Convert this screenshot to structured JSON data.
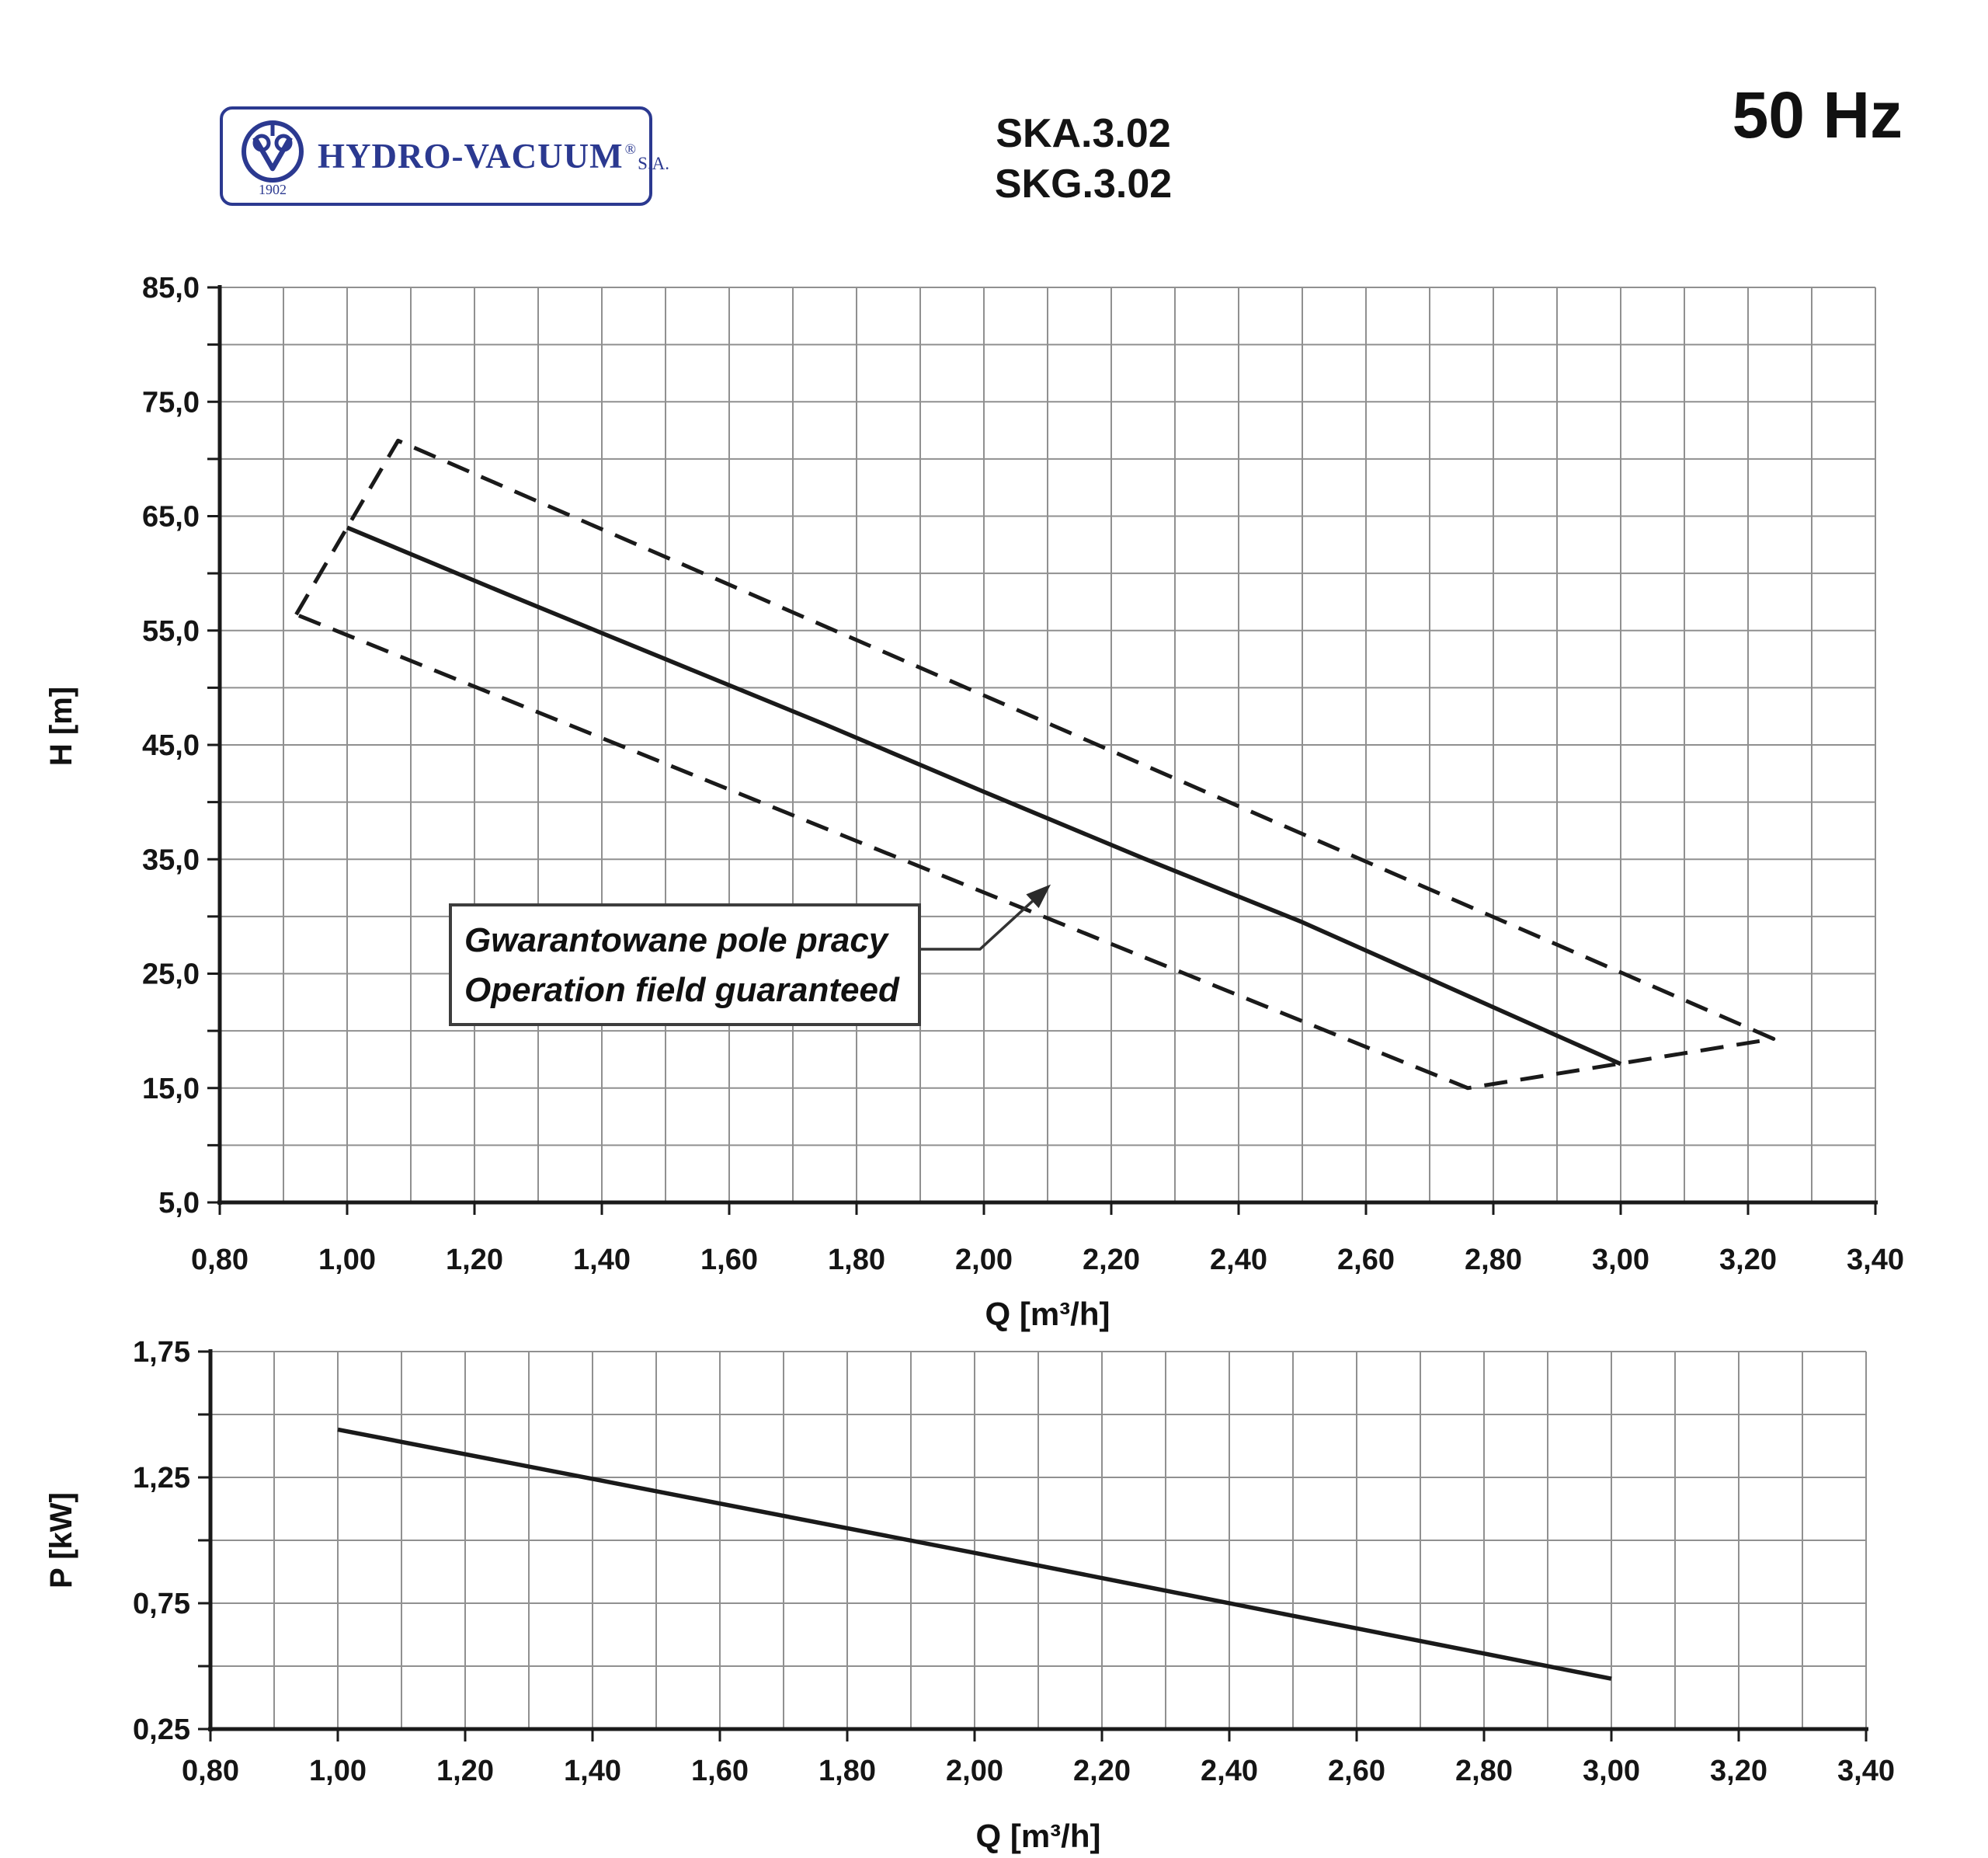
{
  "header": {
    "logo": {
      "brand": "HYDRO-VACUUM",
      "registered_mark": "®",
      "company_suffix": "S.A.",
      "established": "1902",
      "color": "#2b3990"
    },
    "model_line1": "SKA.3.02",
    "model_line2": "SKG.3.02",
    "frequency": "50 Hz"
  },
  "callout": {
    "line1": "Gwarantowane pole pracy",
    "line2": "Operation field guaranteed"
  },
  "colors": {
    "grid": "#909090",
    "axis": "#1a1a1a",
    "curve": "#1a1a1a",
    "text": "#151515",
    "logo_navy": "#2b3990"
  },
  "chart_data": [
    {
      "id": "h-q-chart",
      "type": "line",
      "title": "",
      "xlabel": "Q [m³/h]",
      "ylabel": "H [m]",
      "xlim": [
        0.8,
        3.4
      ],
      "ylim": [
        5,
        85
      ],
      "x_grid_step": 0.1,
      "y_grid_step": 5,
      "grid": true,
      "legend_position": "none",
      "x_ticks": [
        {
          "v": 0.8,
          "t": "0,80"
        },
        {
          "v": 1.0,
          "t": "1,00"
        },
        {
          "v": 1.2,
          "t": "1,20"
        },
        {
          "v": 1.4,
          "t": "1,40"
        },
        {
          "v": 1.6,
          "t": "1,60"
        },
        {
          "v": 1.8,
          "t": "1,80"
        },
        {
          "v": 2.0,
          "t": "2,00"
        },
        {
          "v": 2.2,
          "t": "2,20"
        },
        {
          "v": 2.4,
          "t": "2,40"
        },
        {
          "v": 2.6,
          "t": "2,60"
        },
        {
          "v": 2.8,
          "t": "2,80"
        },
        {
          "v": 3.0,
          "t": "3,00"
        },
        {
          "v": 3.2,
          "t": "3,20"
        },
        {
          "v": 3.4,
          "t": "3,40"
        }
      ],
      "y_ticks": [
        {
          "v": 85,
          "t": "85,0"
        },
        {
          "v": 75,
          "t": "75,0"
        },
        {
          "v": 65,
          "t": "65,0"
        },
        {
          "v": 55,
          "t": "55,0"
        },
        {
          "v": 45,
          "t": "45,0"
        },
        {
          "v": 35,
          "t": "35,0"
        },
        {
          "v": 25,
          "t": "25,0"
        },
        {
          "v": 15,
          "t": "15,0"
        },
        {
          "v": 5,
          "t": "5,0"
        }
      ],
      "series": [
        {
          "name": "head-curve",
          "style": "solid",
          "points": [
            [
              1.0,
              64.0
            ],
            [
              1.25,
              58.2
            ],
            [
              1.5,
              52.5
            ],
            [
              1.75,
              46.8
            ],
            [
              2.0,
              40.9
            ],
            [
              2.25,
              35.1
            ],
            [
              2.5,
              29.5
            ],
            [
              2.75,
              23.3
            ],
            [
              3.0,
              17.1
            ]
          ]
        },
        {
          "name": "operation-field-boundary",
          "style": "dashed",
          "closed": true,
          "points": [
            [
              0.92,
              56.4
            ],
            [
              1.08,
              71.6
            ],
            [
              3.24,
              19.3
            ],
            [
              2.76,
              15.0
            ]
          ]
        }
      ],
      "annotation": {
        "line1": "Gwarantowane pole pracy",
        "line2": "Operation field guaranteed",
        "arrow_tip": [
          2.105,
          32.8
        ]
      }
    },
    {
      "id": "p-q-chart",
      "type": "line",
      "title": "",
      "xlabel": "Q [m³/h]",
      "ylabel": "P [kW]",
      "xlim": [
        0.8,
        3.4
      ],
      "ylim": [
        0.25,
        1.75
      ],
      "x_grid_step": 0.1,
      "y_grid_step": 0.25,
      "grid": true,
      "legend_position": "none",
      "x_ticks": [
        {
          "v": 0.8,
          "t": "0,80"
        },
        {
          "v": 1.0,
          "t": "1,00"
        },
        {
          "v": 1.2,
          "t": "1,20"
        },
        {
          "v": 1.4,
          "t": "1,40"
        },
        {
          "v": 1.6,
          "t": "1,60"
        },
        {
          "v": 1.8,
          "t": "1,80"
        },
        {
          "v": 2.0,
          "t": "2,00"
        },
        {
          "v": 2.2,
          "t": "2,20"
        },
        {
          "v": 2.4,
          "t": "2,40"
        },
        {
          "v": 2.6,
          "t": "2,60"
        },
        {
          "v": 2.8,
          "t": "2,80"
        },
        {
          "v": 3.0,
          "t": "3,00"
        },
        {
          "v": 3.2,
          "t": "3,20"
        },
        {
          "v": 3.4,
          "t": "3,40"
        }
      ],
      "y_ticks": [
        {
          "v": 1.75,
          "t": "1,75"
        },
        {
          "v": 1.25,
          "t": "1,25"
        },
        {
          "v": 0.75,
          "t": "0,75"
        },
        {
          "v": 0.25,
          "t": "0,25"
        }
      ],
      "series": [
        {
          "name": "power-curve",
          "style": "solid",
          "points": [
            [
              1.0,
              1.44
            ],
            [
              1.5,
              1.195
            ],
            [
              2.0,
              0.95
            ],
            [
              2.5,
              0.7
            ],
            [
              3.0,
              0.45
            ]
          ]
        }
      ]
    }
  ]
}
